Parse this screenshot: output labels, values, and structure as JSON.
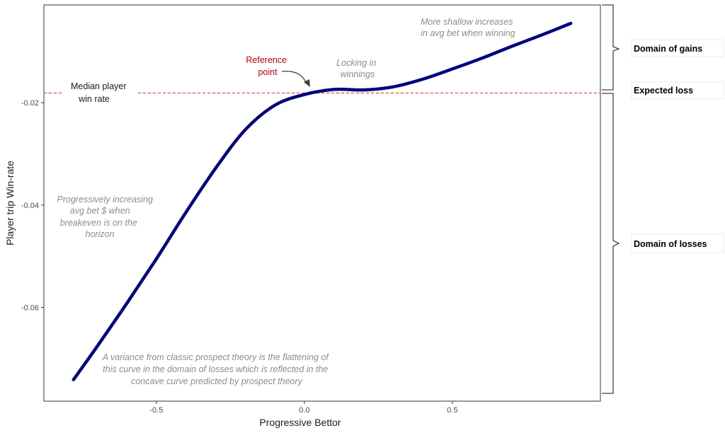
{
  "chart_data": {
    "type": "line",
    "title": "",
    "xlabel": "Progressive Bettor",
    "ylabel": "Player trip Win-rate",
    "xlim": [
      -0.88,
      1.0
    ],
    "ylim": [
      -0.0783,
      -0.0009
    ],
    "x_ticks": [
      -0.5,
      0.0,
      0.5
    ],
    "x_tick_labels": [
      "-0.5",
      "0.0",
      "0.5"
    ],
    "y_ticks": [
      -0.02,
      -0.04,
      -0.06
    ],
    "y_tick_labels": [
      "-0.02",
      "-0.04",
      "-0.06"
    ],
    "grid": false,
    "series": [
      {
        "color": "#000080",
        "x": [
          -0.78,
          -0.7,
          -0.6,
          -0.5,
          -0.4,
          -0.3,
          -0.2,
          -0.1,
          0.0,
          0.1,
          0.2,
          0.3,
          0.4,
          0.5,
          0.6,
          0.7,
          0.8,
          0.9
        ],
        "y": [
          -0.0741,
          -0.0676,
          -0.0592,
          -0.0505,
          -0.0414,
          -0.0328,
          -0.0253,
          -0.0205,
          -0.0184,
          -0.0174,
          -0.0175,
          -0.0169,
          -0.0154,
          -0.0134,
          -0.0113,
          -0.009,
          -0.0068,
          -0.0045
        ]
      }
    ],
    "reference_line": {
      "y": -0.0181,
      "color": "#ff5a5a",
      "style": "dashed"
    },
    "annotations": {
      "median": [
        "Median player",
        "win rate"
      ],
      "reference": [
        "Reference",
        "point"
      ],
      "locking": [
        "Locking in",
        "winnings"
      ],
      "shallow": [
        "More shallow increases",
        "in avg bet when winning"
      ],
      "progressive": [
        "Progressively increasing",
        "avg bet $ when",
        "breakeven is on the",
        "horizon"
      ],
      "variance": [
        "A variance from classic prospect theory is the flattening of",
        "this curve in the domain of losses which is reflected in the",
        "concave curve predicted by prospect theory"
      ]
    },
    "brackets": {
      "gains": "Domain of gains",
      "expected": "Expected loss",
      "losses": "Domain of losses"
    }
  }
}
